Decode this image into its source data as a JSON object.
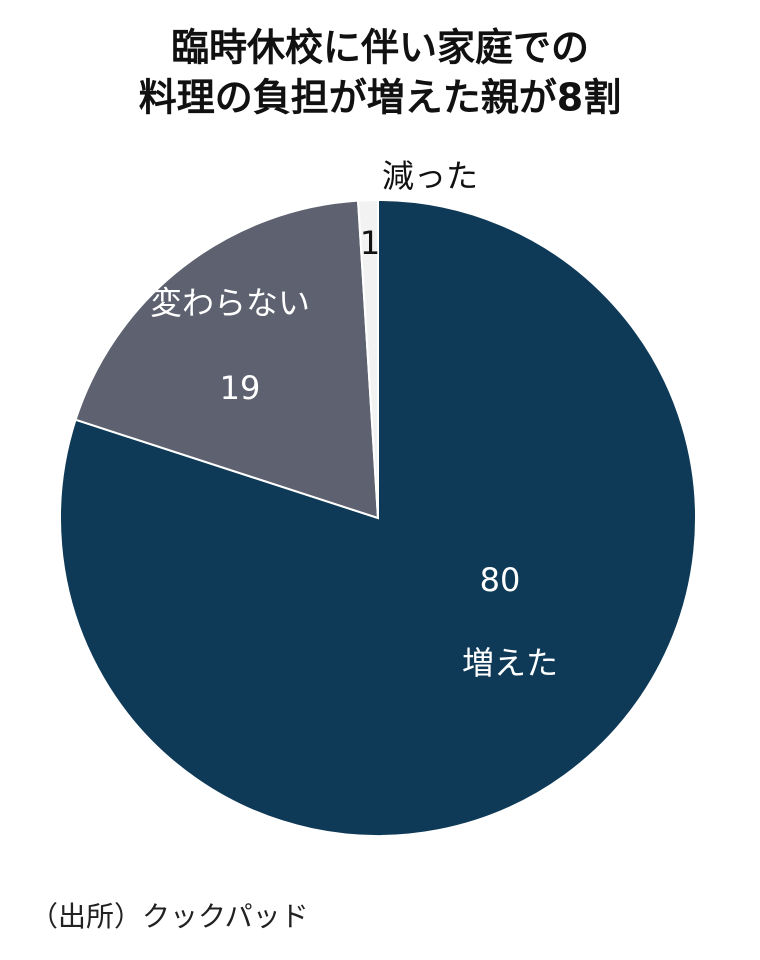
{
  "chart_data": {
    "type": "pie",
    "title_lines": [
      "臨時休校に伴い家庭での",
      "料理の負担が増えた親が8割"
    ],
    "categories": [
      "増えた",
      "変わらない",
      "減った"
    ],
    "values": [
      80,
      19,
      1
    ],
    "colors": [
      "#0e3a57",
      "#5e6270",
      "#f2f2f2"
    ],
    "source": "（出所）クックパッド"
  }
}
